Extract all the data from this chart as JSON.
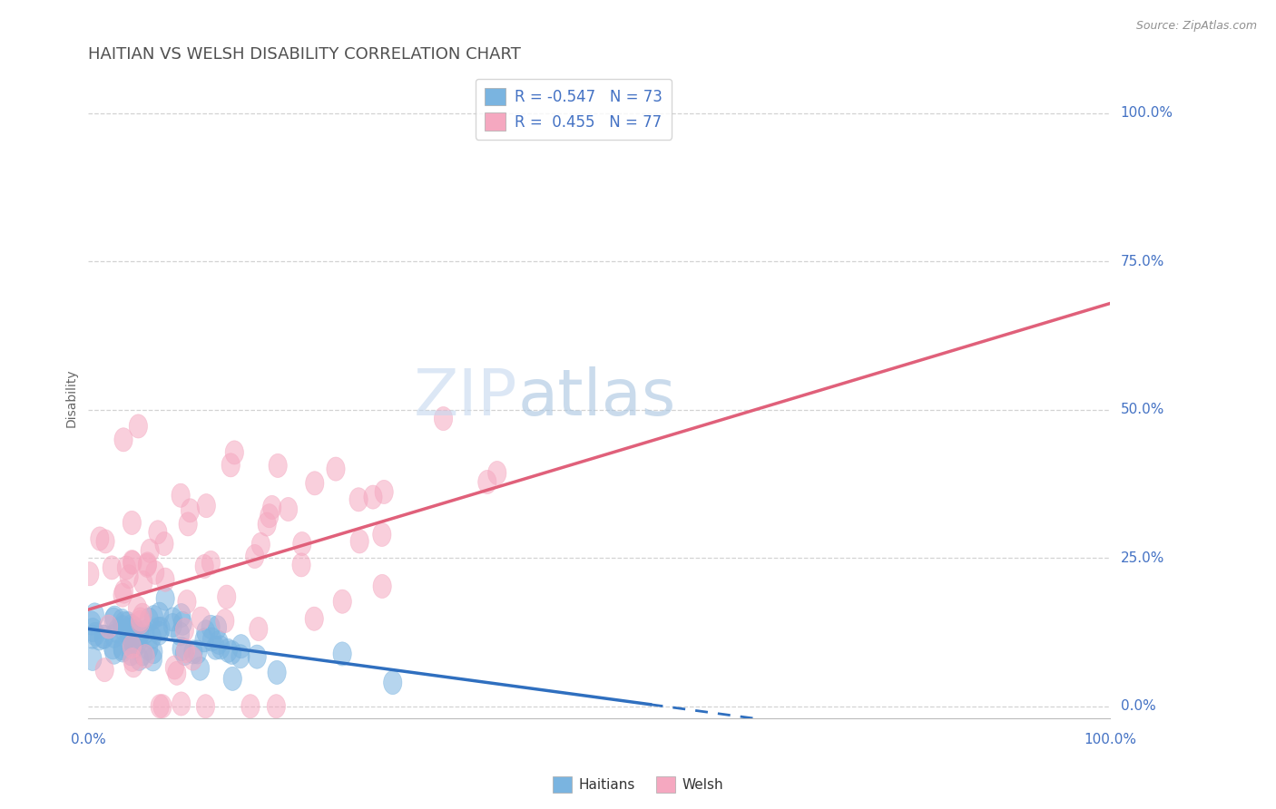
{
  "title": "HAITIAN VS WELSH DISABILITY CORRELATION CHART",
  "source": "Source: ZipAtlas.com",
  "ylabel": "Disability",
  "ytick_labels": [
    "0.0%",
    "25.0%",
    "50.0%",
    "75.0%",
    "100.0%"
  ],
  "ytick_positions": [
    0.0,
    0.25,
    0.5,
    0.75,
    1.0
  ],
  "legend_haitian_R": "-0.547",
  "legend_haitian_N": "73",
  "legend_welsh_R": "0.455",
  "legend_welsh_N": "77",
  "haitian_color": "#7ab4e0",
  "haitian_color_dark": "#2f6fbf",
  "welsh_color": "#f5a8c0",
  "welsh_color_dark": "#e0607a",
  "background_color": "#ffffff",
  "grid_color": "#c8c8c8",
  "title_color": "#505050",
  "axis_label_color": "#4472c4",
  "source_color": "#909090",
  "watermark_zip_color": "#c8d8f0",
  "watermark_atlas_color": "#b8d0e8",
  "n_haitian": 73,
  "n_welsh": 77,
  "haitian_R": -0.547,
  "welsh_R": 0.455
}
